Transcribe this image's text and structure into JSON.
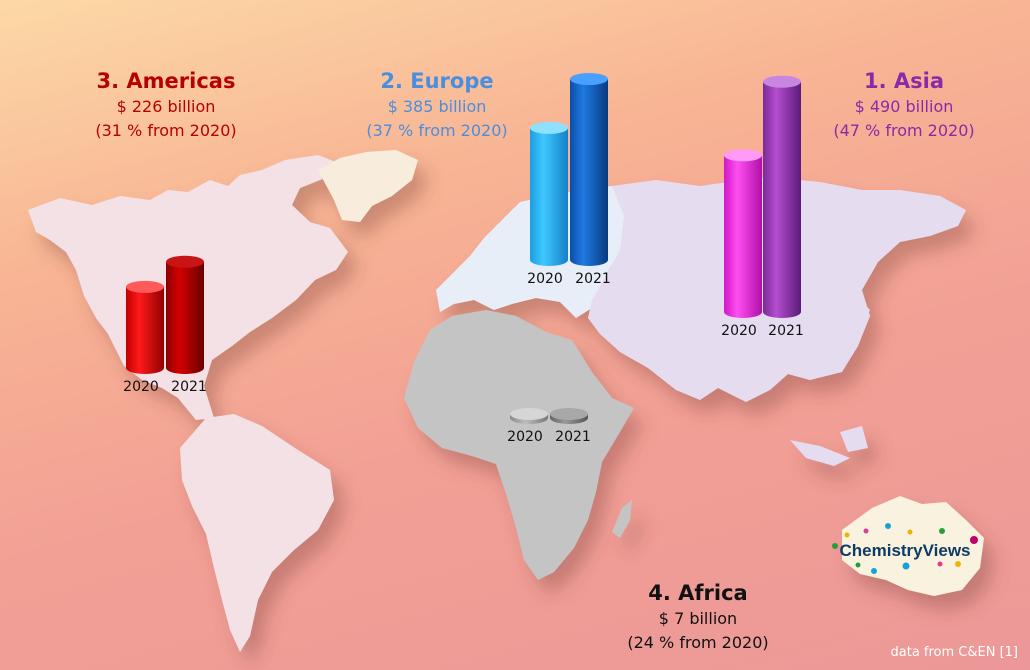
{
  "colors": {
    "americas": "#b80000",
    "europe": "#4a8ee0",
    "asia": "#8a2aa8",
    "africa": "#111111",
    "note": "#ffffff"
  },
  "regions": {
    "americas": {
      "name": "3. Americas",
      "value_text": "$ 226 billion",
      "growth_text": "(31 % from 2020)"
    },
    "europe": {
      "name": "2. Europe",
      "value_text": "$ 385 billion",
      "growth_text": "(37 % from 2020)"
    },
    "asia": {
      "name": "1. Asia",
      "value_text": "$ 490 billion",
      "growth_text": "(47 % from 2020)"
    },
    "africa": {
      "name": "4. Africa",
      "value_text": "$ 7 billion",
      "growth_text": "(24 % from 2020)"
    }
  },
  "source_note": "data from C&EN [1]",
  "logo_text": "ChemistryViews",
  "chart_data": {
    "type": "bar",
    "categories": [
      "2020",
      "2021"
    ],
    "series": [
      {
        "name": "Americas",
        "values": [
          172.5,
          226
        ]
      },
      {
        "name": "Europe",
        "values": [
          281,
          385
        ]
      },
      {
        "name": "Asia",
        "values": [
          333.3,
          490
        ]
      },
      {
        "name": "Africa",
        "values": [
          5.6,
          7
        ]
      }
    ],
    "unit": "$ billion"
  }
}
